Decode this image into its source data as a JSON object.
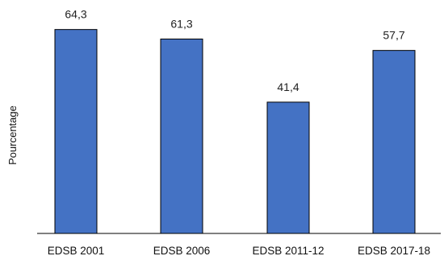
{
  "chart_data": {
    "type": "bar",
    "categories": [
      "EDSB 2001",
      "EDSB 2006",
      "EDSB 2011-12",
      "EDSB 2017-18"
    ],
    "values": [
      64.3,
      61.3,
      41.4,
      57.7
    ],
    "value_labels": [
      "64,3",
      "61,3",
      "41,4",
      "57,7"
    ],
    "xlabel": "",
    "ylabel": "Pourcentage",
    "ylim": [
      0,
      70
    ],
    "grid": false,
    "legend": "none",
    "bar_color": "#4472C4",
    "bar_edge_color": "#000000"
  }
}
